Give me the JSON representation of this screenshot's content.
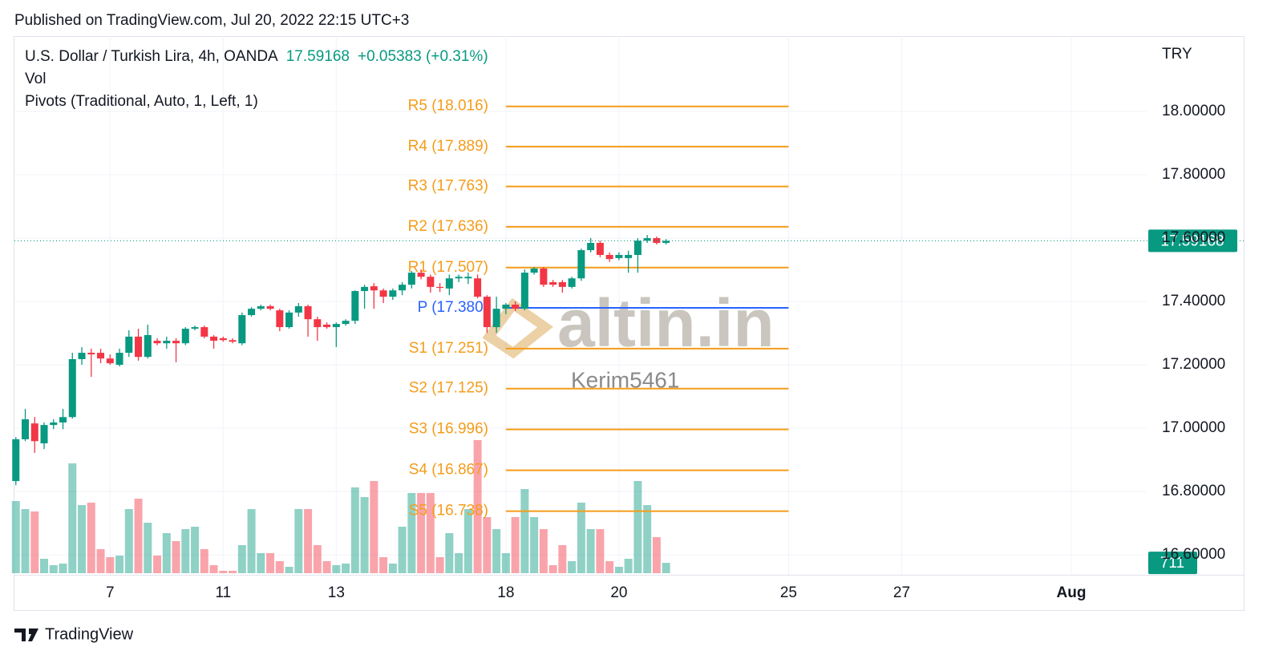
{
  "header": {
    "published": "Published on TradingView.com, Jul 20, 2022 22:15 UTC+3",
    "footer": "TradingView"
  },
  "chart_data": {
    "type": "candlestick",
    "title": "U.S. Dollar / Turkish Lira, 4h, OANDA",
    "change": "+0.05383 (+0.31%)",
    "volume_title": "Vol",
    "indicator_title": "Pivots (Traditional, Auto, 1, Left, 1)",
    "currency": "TRY",
    "watermark": "altin.in",
    "author": "Kerim5461",
    "up_color": "#089981",
    "down_color": "#f23645",
    "grid": true,
    "open": [
      16.833,
      16.965,
      17.015,
      16.952,
      17.01,
      17.018,
      17.035,
      17.218,
      17.238,
      17.238,
      17.22,
      17.2,
      17.238,
      17.289,
      17.225,
      17.276,
      17.268,
      17.276,
      17.268,
      17.314,
      17.319,
      17.289,
      17.284,
      17.278,
      17.268,
      17.357,
      17.377,
      17.385,
      17.372,
      17.319,
      17.365,
      17.385,
      17.344,
      17.327,
      17.319,
      17.329,
      17.339,
      17.433,
      17.448,
      17.435,
      17.415,
      17.435,
      17.453,
      17.491,
      17.478,
      17.446,
      17.441,
      17.473,
      17.473,
      17.473,
      17.415,
      17.319,
      17.377,
      17.39,
      17.377,
      17.491,
      17.504,
      17.461,
      17.461,
      17.446,
      17.473,
      17.562,
      17.585,
      17.547,
      17.537,
      17.537,
      17.547,
      17.592,
      17.6,
      17.585
    ],
    "high": [
      16.972,
      17.061,
      17.035,
      17.018,
      17.028,
      17.061,
      17.238,
      17.256,
      17.251,
      17.251,
      17.233,
      17.251,
      17.309,
      17.314,
      17.327,
      17.284,
      17.289,
      17.284,
      17.319,
      17.324,
      17.324,
      17.294,
      17.289,
      17.284,
      17.365,
      17.382,
      17.39,
      17.39,
      17.377,
      17.372,
      17.395,
      17.39,
      17.352,
      17.334,
      17.334,
      17.344,
      17.435,
      17.453,
      17.458,
      17.441,
      17.441,
      17.461,
      17.496,
      17.501,
      17.485,
      17.458,
      17.485,
      17.485,
      17.491,
      17.485,
      17.42,
      17.415,
      17.395,
      17.4,
      17.501,
      17.509,
      17.509,
      17.468,
      17.468,
      17.478,
      17.567,
      17.6,
      17.592,
      17.555,
      17.555,
      17.56,
      17.6,
      17.61,
      17.605,
      17.597
    ],
    "low": [
      16.82,
      16.959,
      16.922,
      16.934,
      16.997,
      16.997,
      17.03,
      17.2,
      17.162,
      17.205,
      17.2,
      17.195,
      17.225,
      17.213,
      17.22,
      17.262,
      17.251,
      17.208,
      17.262,
      17.309,
      17.284,
      17.251,
      17.273,
      17.268,
      17.262,
      17.352,
      17.372,
      17.372,
      17.306,
      17.314,
      17.352,
      17.289,
      17.276,
      17.314,
      17.256,
      17.324,
      17.329,
      17.377,
      17.377,
      17.395,
      17.405,
      17.42,
      17.441,
      17.47,
      17.428,
      17.43,
      17.42,
      17.461,
      17.455,
      17.41,
      17.301,
      17.301,
      17.36,
      17.37,
      17.372,
      17.485,
      17.446,
      17.446,
      17.428,
      17.441,
      17.465,
      17.555,
      17.54,
      17.525,
      17.53,
      17.491,
      17.491,
      17.585,
      17.58,
      17.58
    ],
    "close": [
      16.965,
      17.028,
      16.959,
      17.01,
      17.018,
      17.035,
      17.218,
      17.238,
      17.233,
      17.22,
      17.205,
      17.238,
      17.289,
      17.225,
      17.294,
      17.268,
      17.276,
      17.268,
      17.314,
      17.319,
      17.289,
      17.276,
      17.278,
      17.273,
      17.357,
      17.377,
      17.385,
      17.377,
      17.319,
      17.365,
      17.385,
      17.344,
      17.319,
      17.319,
      17.329,
      17.339,
      17.433,
      17.446,
      17.435,
      17.415,
      17.435,
      17.453,
      17.491,
      17.478,
      17.446,
      17.443,
      17.473,
      17.478,
      17.478,
      17.415,
      17.319,
      17.377,
      17.39,
      17.377,
      17.491,
      17.504,
      17.453,
      17.453,
      17.446,
      17.473,
      17.562,
      17.585,
      17.547,
      17.534,
      17.547,
      17.547,
      17.592,
      17.6,
      17.585,
      17.59168
    ],
    "volume": [
      4950,
      4400,
      4235,
      990,
      550,
      660,
      7535,
      4675,
      4840,
      1650,
      1100,
      1210,
      4400,
      5115,
      3465,
      1210,
      2750,
      2200,
      3025,
      3190,
      1650,
      550,
      165,
      165,
      1925,
      4400,
      1375,
      1375,
      825,
      440,
      4400,
      4400,
      1925,
      825,
      550,
      660,
      5885,
      5225,
      6325,
      1100,
      660,
      3190,
      5500,
      5500,
      5500,
      1100,
      2750,
      1375,
      4400,
      9130,
      3850,
      3025,
      1375,
      3850,
      5775,
      3850,
      3025,
      550,
      1925,
      825,
      4840,
      3025,
      3025,
      825,
      440,
      990,
      6325,
      4675,
      2475,
      711
    ],
    "xlim": [
      -0.15,
      120
    ],
    "xticks": [
      {
        "value": 10,
        "label": "7"
      },
      {
        "value": 22,
        "label": "11"
      },
      {
        "value": 34,
        "label": "13"
      },
      {
        "value": 52,
        "label": "18"
      },
      {
        "value": 64,
        "label": "20"
      },
      {
        "value": 82,
        "label": "25"
      },
      {
        "value": 94,
        "label": "27"
      },
      {
        "value": 112,
        "label": "Aug"
      }
    ],
    "ylim": [
      16.537,
      18.238
    ],
    "yticks": [
      {
        "value": 18.0,
        "label": "18.00000"
      },
      {
        "value": 17.8,
        "label": "17.80000"
      },
      {
        "value": 17.6,
        "label": "17.60000"
      },
      {
        "value": 17.4,
        "label": "17.40000"
      },
      {
        "value": 17.2,
        "label": "17.20000"
      },
      {
        "value": 17.0,
        "label": "17.00000"
      },
      {
        "value": 16.8,
        "label": "16.80000"
      },
      {
        "value": 16.6,
        "label": "16.60000"
      }
    ],
    "pivot_range": [
      52,
      82
    ],
    "pivots": [
      {
        "label": "R5 (18.016)",
        "value": 18.016,
        "color": "#f59c1a"
      },
      {
        "label": "R4 (17.889)",
        "value": 17.889,
        "color": "#f59c1a"
      },
      {
        "label": "R3 (17.763)",
        "value": 17.763,
        "color": "#f59c1a"
      },
      {
        "label": "R2 (17.636)",
        "value": 17.636,
        "color": "#f59c1a"
      },
      {
        "label": "R1 (17.507)",
        "value": 17.507,
        "color": "#f59c1a"
      },
      {
        "label": "P (17.380)",
        "value": 17.38,
        "color": "#2962ff"
      },
      {
        "label": "S1 (17.251)",
        "value": 17.251,
        "color": "#f59c1a"
      },
      {
        "label": "S2 (17.125)",
        "value": 17.125,
        "color": "#f59c1a"
      },
      {
        "label": "S3 (16.996)",
        "value": 16.996,
        "color": "#f59c1a"
      },
      {
        "label": "S4 (16.867)",
        "value": 16.867,
        "color": "#f59c1a"
      },
      {
        "label": "S5 (16.738)",
        "value": 16.738,
        "color": "#f59c1a"
      }
    ]
  }
}
